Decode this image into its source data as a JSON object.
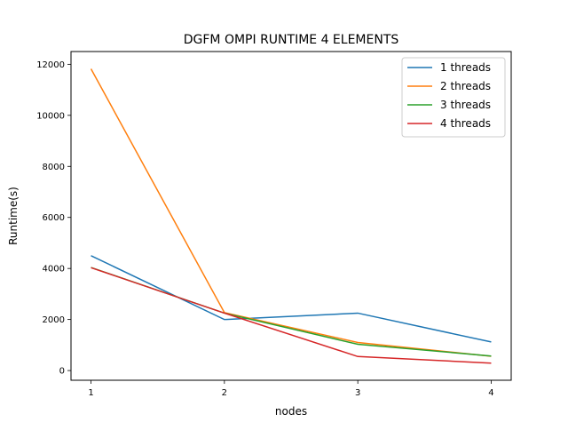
{
  "chart_data": {
    "type": "line",
    "title": "DGFM OMPI RUNTIME 4 ELEMENTS",
    "xlabel": "nodes",
    "ylabel": "Runtime(s)",
    "x": [
      1,
      2,
      3,
      4
    ],
    "xticks": [
      "1",
      "2",
      "3",
      "4"
    ],
    "yticks": [
      "0",
      "2000",
      "4000",
      "6000",
      "8000",
      "10000",
      "12000"
    ],
    "xlim": [
      0.85,
      4.15
    ],
    "ylim": [
      -380,
      12500
    ],
    "grid": false,
    "legend_position": "upper right",
    "series": [
      {
        "name": "1 threads",
        "color": "#1f77b4",
        "values": [
          4500,
          2000,
          2250,
          1120
        ]
      },
      {
        "name": "2 threads",
        "color": "#ff7f0e",
        "values": [
          11820,
          2270,
          1100,
          560
        ]
      },
      {
        "name": "3 threads",
        "color": "#2ca02c",
        "values": [
          4040,
          2250,
          1030,
          570
        ]
      },
      {
        "name": "4 threads",
        "color": "#d62728",
        "values": [
          4030,
          2250,
          550,
          290
        ]
      }
    ]
  }
}
